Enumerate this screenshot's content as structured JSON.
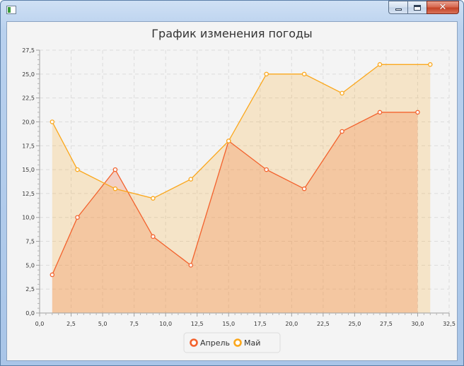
{
  "window": {
    "title": ""
  },
  "chart_data": {
    "type": "area",
    "title": "График изменения погоды",
    "xlabel": "",
    "ylabel": "",
    "xlim": [
      0,
      32.5
    ],
    "ylim": [
      0,
      27.5
    ],
    "x_ticks": [
      "0,0",
      "2,5",
      "5,0",
      "7,5",
      "10,0",
      "12,5",
      "15,0",
      "17,5",
      "20,0",
      "22,5",
      "25,0",
      "27,5",
      "30,0",
      "32,5"
    ],
    "y_ticks": [
      "0,0",
      "2,5",
      "5,0",
      "7,5",
      "10,0",
      "12,5",
      "15,0",
      "17,5",
      "20,0",
      "22,5",
      "25,0",
      "27,5"
    ],
    "grid": true,
    "legend": "bottom-center",
    "series": [
      {
        "name": "Апрель",
        "color": "#f3622d",
        "fill": "rgba(243,98,45,0.24)",
        "points": [
          [
            1,
            4
          ],
          [
            3,
            10
          ],
          [
            6,
            15
          ],
          [
            9,
            8
          ],
          [
            12,
            5
          ],
          [
            15,
            18
          ],
          [
            18,
            15
          ],
          [
            21,
            13
          ],
          [
            24,
            19
          ],
          [
            27,
            21
          ],
          [
            30,
            21
          ]
        ]
      },
      {
        "name": "Май",
        "color": "#fba71b",
        "fill": "rgba(251,167,27,0.2)",
        "points": [
          [
            1,
            20
          ],
          [
            3,
            15
          ],
          [
            6,
            13
          ],
          [
            9,
            12
          ],
          [
            12,
            14
          ],
          [
            15,
            18
          ],
          [
            18,
            25
          ],
          [
            21,
            25
          ],
          [
            24,
            23
          ],
          [
            27,
            26
          ],
          [
            31,
            26
          ]
        ]
      }
    ]
  }
}
